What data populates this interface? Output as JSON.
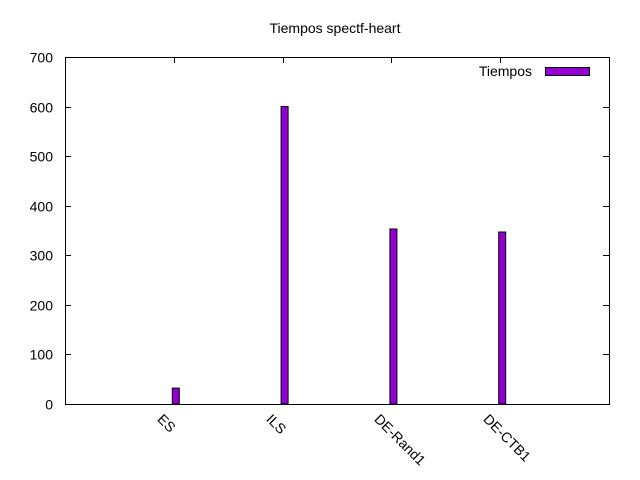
{
  "chart_data": {
    "type": "bar",
    "title": "Tiempos spectf-heart",
    "xlabel": "",
    "ylabel": "",
    "categories": [
      "ES",
      "ILS",
      "DE-Rand1",
      "DE-CTB1"
    ],
    "series": [
      {
        "name": "Tiempos",
        "values": [
          32,
          600,
          353,
          347
        ],
        "color": "#9400d3"
      }
    ],
    "ylim": [
      0,
      700
    ],
    "yticks": [
      "0",
      "100",
      "200",
      "300",
      "400",
      "500",
      "600",
      "700"
    ],
    "grid": false,
    "legend": "top-right",
    "xtick_rotation": "45deg"
  }
}
